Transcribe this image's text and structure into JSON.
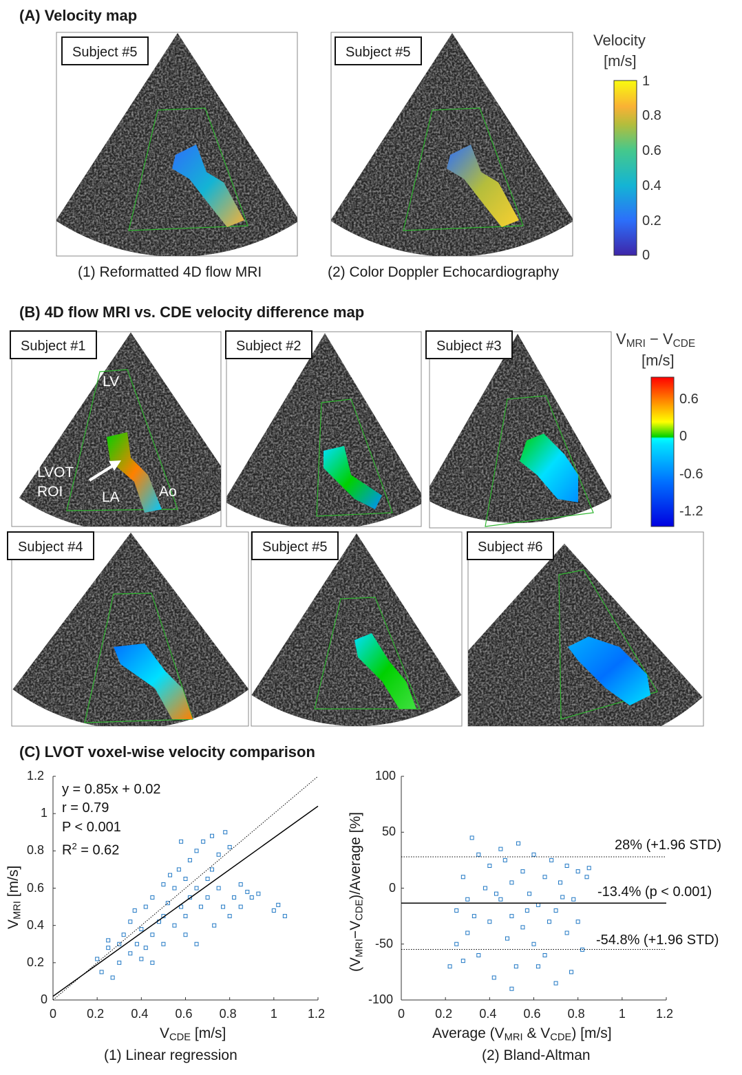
{
  "panel_a": {
    "title": "(A) Velocity map",
    "images": [
      {
        "label": "Subject #5",
        "caption": "(1) Reformatted 4D flow MRI"
      },
      {
        "label": "Subject #5",
        "caption": "(2) Color Doppler Echocardiography"
      }
    ],
    "colorbar": {
      "title_line1": "Velocity",
      "title_line2": "[m/s]",
      "range": [
        0,
        1
      ],
      "ticks": [
        "1",
        "0.8",
        "0.6",
        "0.4",
        "0.2",
        "0"
      ],
      "colormap": "parula"
    }
  },
  "panel_b": {
    "title": "(B) 4D flow MRI vs. CDE velocity difference map",
    "images": [
      {
        "label": "Subject #1"
      },
      {
        "label": "Subject #2"
      },
      {
        "label": "Subject #3"
      },
      {
        "label": "Subject #4"
      },
      {
        "label": "Subject #5"
      },
      {
        "label": "Subject #6"
      }
    ],
    "anatomy": {
      "lv": "LV",
      "lvot_line1": "LVOT",
      "lvot_line2": "ROI",
      "la": "LA",
      "ao": "Ao"
    },
    "colorbar": {
      "title_v1": "V",
      "title_sub1": "MRI",
      "title_minus": " − ",
      "title_v2": "V",
      "title_sub2": "CDE",
      "title_unit": "[m/s]",
      "range": [
        -1.44,
        0.97
      ],
      "ticks": [
        "0.6",
        "0",
        "-0.6",
        "-1.2"
      ],
      "colormap": "jet"
    }
  },
  "panel_c": {
    "title": "(C) LVOT voxel-wise velocity comparison"
  },
  "chart_data": [
    {
      "type": "scatter",
      "caption": "(1) Linear regression",
      "xlabel": {
        "v": "V",
        "sub": "CDE",
        "unit": " [m/s]"
      },
      "ylabel": {
        "v": "V",
        "sub": "MRI",
        "unit": " [m/s]"
      },
      "xlim": [
        0,
        1.2
      ],
      "ylim": [
        0,
        1.2
      ],
      "xticks": [
        "0",
        "0.2",
        "0.4",
        "0.6",
        "0.8",
        "1",
        "1.2"
      ],
      "yticks": [
        "0",
        "0.2",
        "0.4",
        "0.6",
        "0.8",
        "1",
        "1.2"
      ],
      "annotations": {
        "eq": "y = 0.85x + 0.02",
        "r": "r = 0.79",
        "p": "P < 0.001",
        "r2_pre": "R",
        "r2_sup": "2",
        "r2_post": " = 0.62"
      },
      "fit": {
        "slope": 0.85,
        "intercept": 0.02
      },
      "identity_line": true,
      "marker_color": "#1f77c4",
      "points": [
        [
          0.2,
          0.22
        ],
        [
          0.22,
          0.15
        ],
        [
          0.25,
          0.28
        ],
        [
          0.27,
          0.12
        ],
        [
          0.3,
          0.3
        ],
        [
          0.3,
          0.2
        ],
        [
          0.32,
          0.35
        ],
        [
          0.35,
          0.25
        ],
        [
          0.35,
          0.42
        ],
        [
          0.38,
          0.3
        ],
        [
          0.4,
          0.38
        ],
        [
          0.4,
          0.22
        ],
        [
          0.42,
          0.5
        ],
        [
          0.45,
          0.35
        ],
        [
          0.45,
          0.55
        ],
        [
          0.48,
          0.42
        ],
        [
          0.5,
          0.45
        ],
        [
          0.5,
          0.3
        ],
        [
          0.5,
          0.62
        ],
        [
          0.52,
          0.52
        ],
        [
          0.55,
          0.4
        ],
        [
          0.55,
          0.6
        ],
        [
          0.57,
          0.7
        ],
        [
          0.58,
          0.5
        ],
        [
          0.6,
          0.45
        ],
        [
          0.6,
          0.65
        ],
        [
          0.62,
          0.55
        ],
        [
          0.62,
          0.75
        ],
        [
          0.65,
          0.6
        ],
        [
          0.65,
          0.8
        ],
        [
          0.67,
          0.5
        ],
        [
          0.68,
          0.85
        ],
        [
          0.7,
          0.65
        ],
        [
          0.7,
          0.55
        ],
        [
          0.72,
          0.88
        ],
        [
          0.72,
          0.7
        ],
        [
          0.75,
          0.6
        ],
        [
          0.75,
          0.78
        ],
        [
          0.77,
          0.5
        ],
        [
          0.78,
          0.9
        ],
        [
          0.8,
          0.82
        ],
        [
          0.8,
          0.45
        ],
        [
          0.82,
          0.55
        ],
        [
          0.85,
          0.5
        ],
        [
          0.88,
          0.58
        ],
        [
          0.9,
          0.55
        ],
        [
          0.93,
          0.57
        ],
        [
          1.0,
          0.48
        ],
        [
          1.02,
          0.51
        ],
        [
          1.05,
          0.45
        ],
        [
          0.6,
          0.35
        ],
        [
          0.65,
          0.3
        ],
        [
          0.45,
          0.2
        ],
        [
          0.25,
          0.32
        ],
        [
          0.37,
          0.48
        ],
        [
          0.53,
          0.67
        ],
        [
          0.58,
          0.85
        ],
        [
          0.73,
          0.4
        ],
        [
          0.85,
          0.62
        ],
        [
          0.42,
          0.28
        ]
      ]
    },
    {
      "type": "scatter",
      "caption": "(2) Bland-Altman",
      "xlabel": {
        "pre": "Average (V",
        "sub1": "MRI",
        "mid": " & V",
        "sub2": "CDE",
        "post": ") [m/s]"
      },
      "ylabel": {
        "pre": "(V",
        "sub1": "MRI",
        "mid": "−V",
        "sub2": "CDE",
        "post": ")/Average [%]"
      },
      "xlim": [
        0,
        1.2
      ],
      "ylim": [
        -100,
        100
      ],
      "xticks": [
        "0",
        "0.2",
        "0.4",
        "0.6",
        "0.8",
        "1",
        "1.2"
      ],
      "yticks": [
        "100",
        "50",
        "0",
        "-50",
        "-100"
      ],
      "lines": [
        {
          "value": 28,
          "style": "dotted",
          "label": "28% (+1.96 STD)"
        },
        {
          "value": -13.4,
          "style": "solid",
          "label": "-13.4% (p < 0.001)"
        },
        {
          "value": -54.8,
          "style": "dotted",
          "label": "-54.8% (+1.96 STD)"
        }
      ],
      "marker_color": "#1f77c4",
      "points": [
        [
          0.22,
          -70
        ],
        [
          0.25,
          -20
        ],
        [
          0.28,
          10
        ],
        [
          0.3,
          -40
        ],
        [
          0.32,
          45
        ],
        [
          0.35,
          30
        ],
        [
          0.35,
          -60
        ],
        [
          0.38,
          0
        ],
        [
          0.4,
          -30
        ],
        [
          0.4,
          20
        ],
        [
          0.42,
          -80
        ],
        [
          0.45,
          -10
        ],
        [
          0.45,
          35
        ],
        [
          0.48,
          -45
        ],
        [
          0.5,
          5
        ],
        [
          0.5,
          -25
        ],
        [
          0.52,
          -70
        ],
        [
          0.55,
          15
        ],
        [
          0.55,
          -35
        ],
        [
          0.58,
          -5
        ],
        [
          0.6,
          30
        ],
        [
          0.6,
          -50
        ],
        [
          0.62,
          -15
        ],
        [
          0.65,
          10
        ],
        [
          0.65,
          -60
        ],
        [
          0.68,
          25
        ],
        [
          0.7,
          -20
        ],
        [
          0.7,
          -85
        ],
        [
          0.72,
          5
        ],
        [
          0.75,
          20
        ],
        [
          0.75,
          -40
        ],
        [
          0.78,
          -10
        ],
        [
          0.8,
          15
        ],
        [
          0.8,
          -30
        ],
        [
          0.82,
          -55
        ],
        [
          0.84,
          10
        ],
        [
          0.85,
          18
        ],
        [
          0.3,
          -10
        ],
        [
          0.25,
          -50
        ],
        [
          0.5,
          -90
        ],
        [
          0.62,
          -70
        ],
        [
          0.33,
          -25
        ],
        [
          0.43,
          -5
        ],
        [
          0.57,
          -20
        ],
        [
          0.67,
          -30
        ],
        [
          0.73,
          -8
        ],
        [
          0.77,
          -75
        ],
        [
          0.28,
          -65
        ],
        [
          0.47,
          25
        ],
        [
          0.53,
          40
        ]
      ]
    }
  ]
}
